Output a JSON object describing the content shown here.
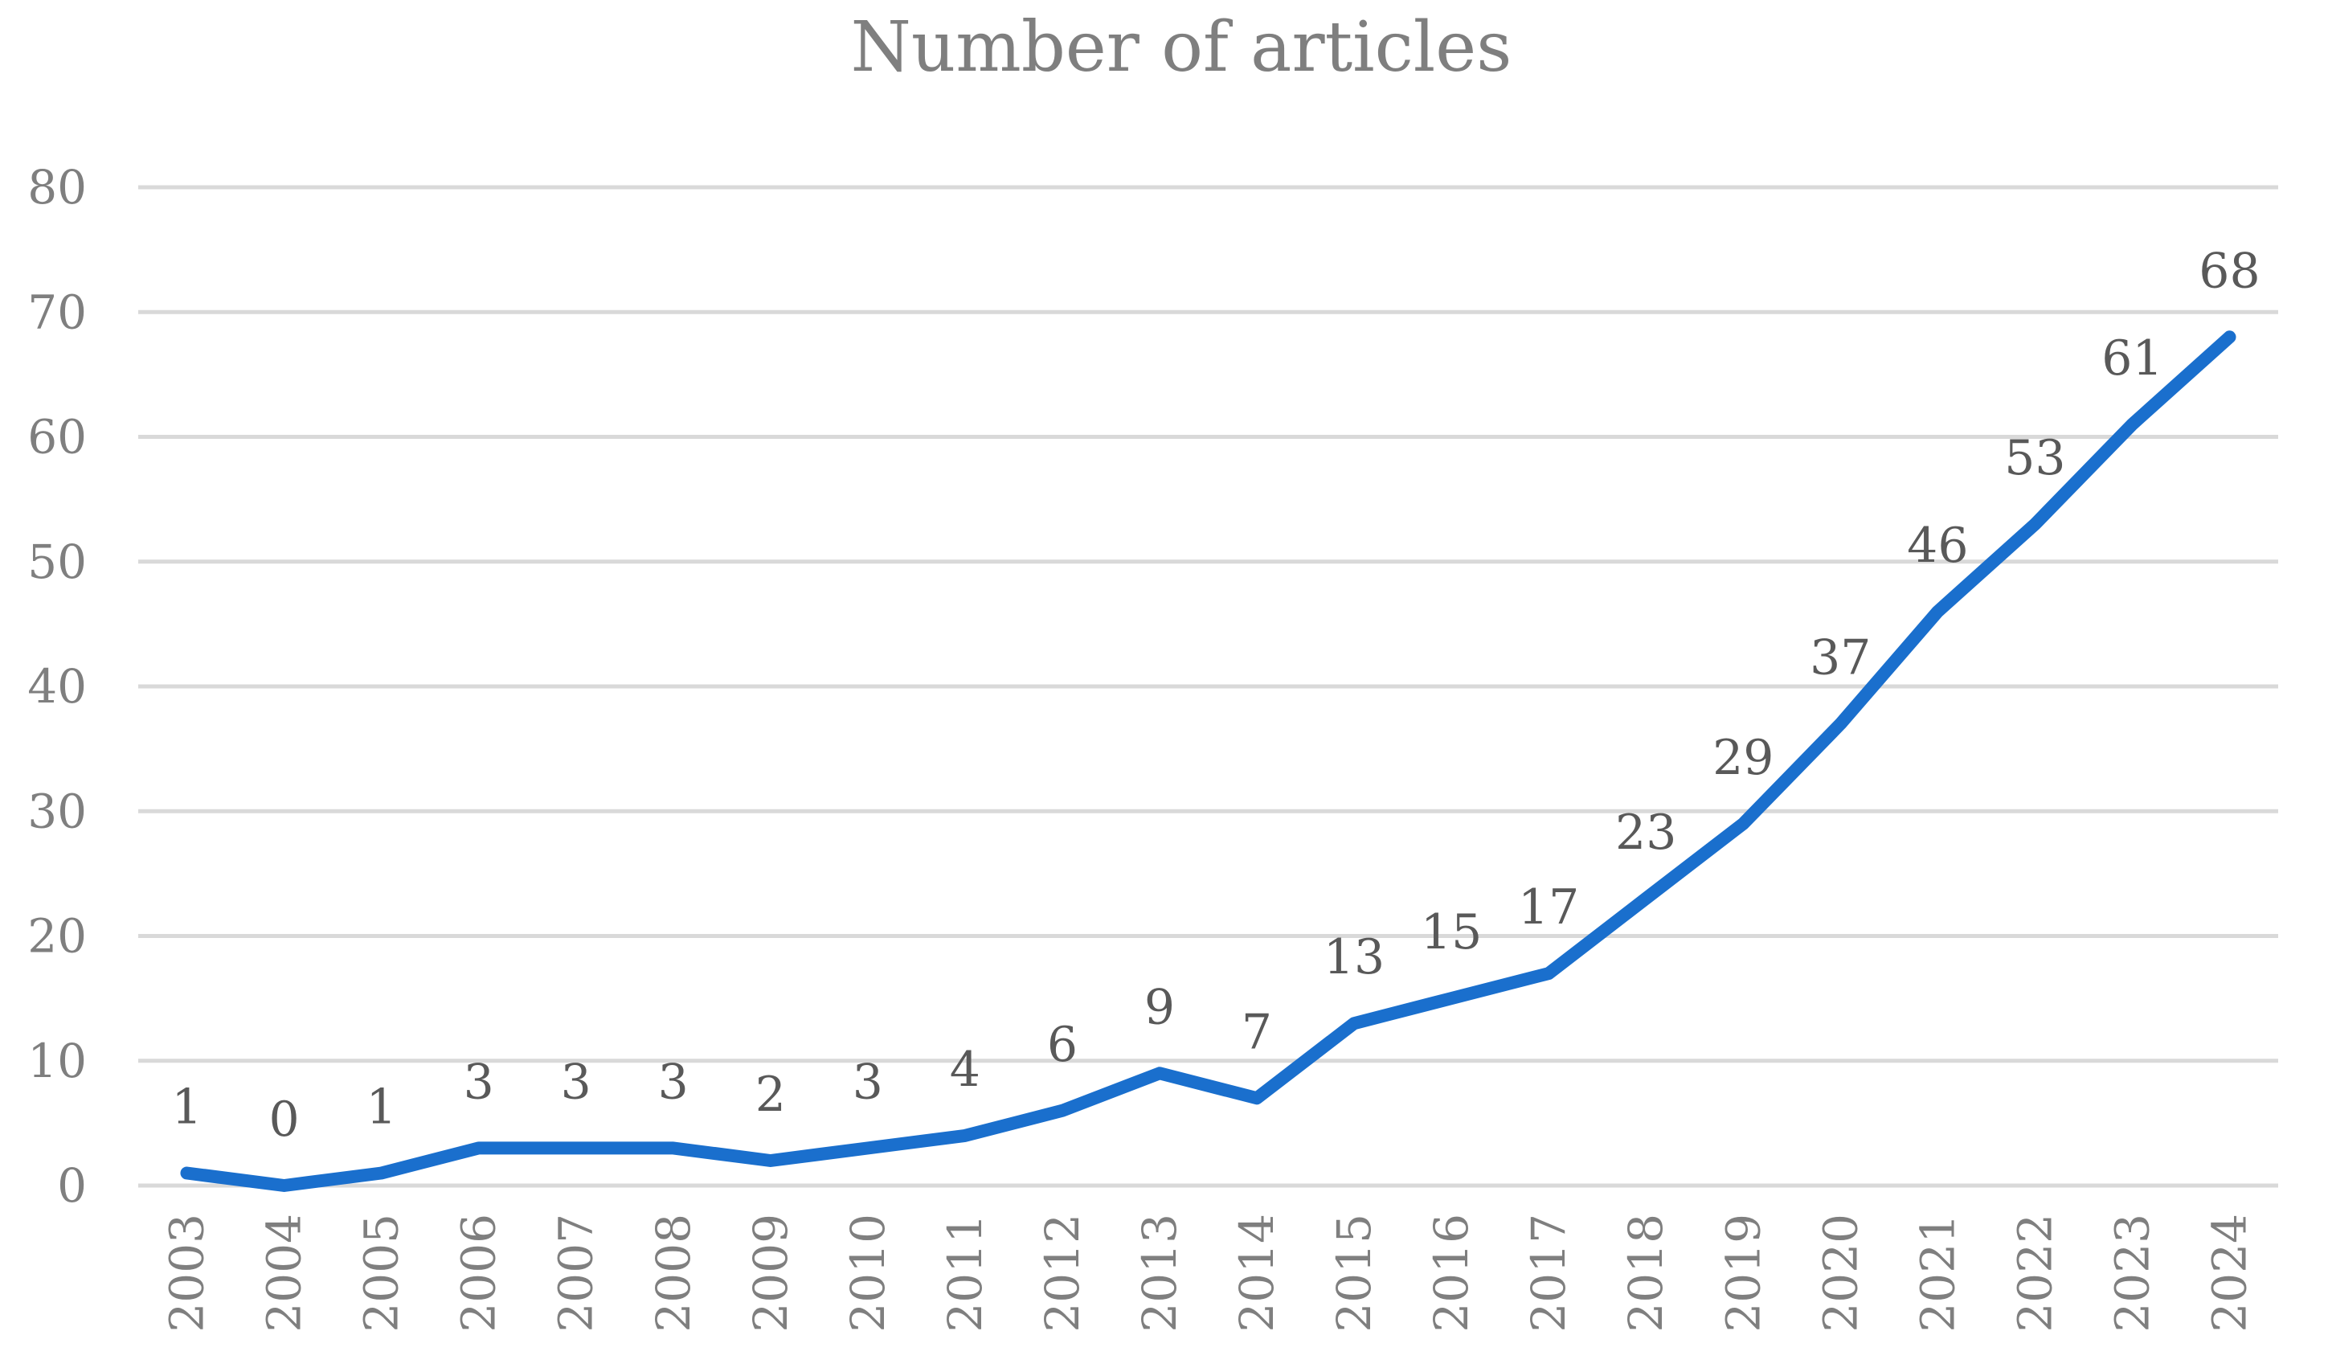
{
  "chart_data": {
    "type": "line",
    "title": "Number of articles",
    "xlabel": "",
    "ylabel": "",
    "categories": [
      "2003",
      "2004",
      "2005",
      "2006",
      "2007",
      "2008",
      "2009",
      "2010",
      "2011",
      "2012",
      "2013",
      "2014",
      "2015",
      "2016",
      "2017",
      "2018",
      "2019",
      "2020",
      "2021",
      "2022",
      "2023",
      "2024"
    ],
    "series": [
      {
        "values": [
          1,
          0,
          1,
          3,
          3,
          3,
          2,
          3,
          4,
          6,
          9,
          7,
          13,
          15,
          17,
          23,
          29,
          37,
          46,
          53,
          61,
          68
        ],
        "color": "#1a6fcd",
        "data_labels": true
      }
    ],
    "ylim": [
      0,
      80
    ],
    "yticks": [
      0,
      10,
      20,
      30,
      40,
      50,
      60,
      70,
      80
    ],
    "grid": true,
    "legend": "none"
  }
}
